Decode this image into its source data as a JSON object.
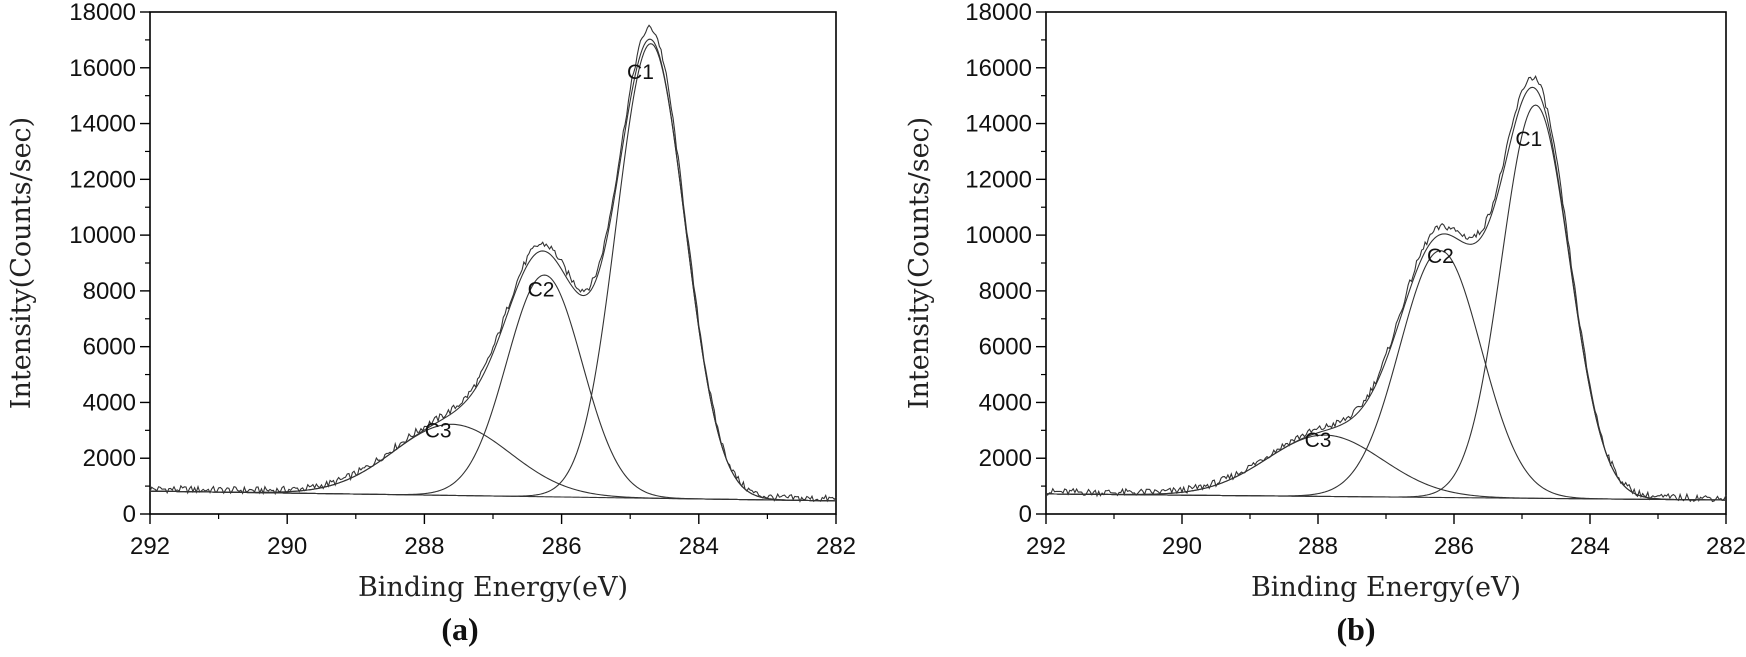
{
  "chart_data": [
    {
      "type": "line",
      "panel": "(a)",
      "panel_letter": "a",
      "xlabel": "Binding Energy(eV)",
      "ylabel": "Intensity(Counts/sec)",
      "xlim": [
        292,
        282
      ],
      "ylim": [
        0,
        18000
      ],
      "x_ticks": [
        292,
        290,
        288,
        286,
        284,
        282
      ],
      "y_ticks": [
        0,
        2000,
        4000,
        6000,
        8000,
        10000,
        12000,
        14000,
        16000,
        18000
      ],
      "background": {
        "start": 820,
        "end": 470
      },
      "peaks": [
        {
          "label": "C1",
          "center": 284.7,
          "height": 16300,
          "sigma": 0.5
        },
        {
          "label": "C2",
          "center": 286.25,
          "height": 7950,
          "sigma": 0.55
        },
        {
          "label": "C3",
          "center": 287.6,
          "height": 2550,
          "sigma": 0.85
        }
      ],
      "label_positions": [
        {
          "label": "C1",
          "x": 284.85,
          "y": 15600
        },
        {
          "label": "C2",
          "x": 286.3,
          "y": 7800
        },
        {
          "label": "C3",
          "x": 287.8,
          "y": 2750
        }
      ],
      "series": [
        {
          "name": "C1",
          "values": "gaussian"
        },
        {
          "name": "C2",
          "values": "gaussian"
        },
        {
          "name": "C3",
          "values": "gaussian"
        },
        {
          "name": "Background",
          "values": "linear"
        },
        {
          "name": "Envelope",
          "values": "sum"
        },
        {
          "name": "Raw data",
          "values": "measured"
        }
      ]
    },
    {
      "type": "line",
      "panel": "(b)",
      "panel_letter": "b",
      "xlabel": "Binding Energy(eV)",
      "ylabel": "Intensity(Counts/sec)",
      "xlim": [
        292,
        282
      ],
      "ylim": [
        0,
        18000
      ],
      "x_ticks": [
        292,
        290,
        288,
        286,
        284,
        282
      ],
      "y_ticks": [
        0,
        2000,
        4000,
        6000,
        8000,
        10000,
        12000,
        14000,
        16000,
        18000
      ],
      "background": {
        "start": 720,
        "end": 500
      },
      "peaks": [
        {
          "label": "C1",
          "center": 284.8,
          "height": 14100,
          "sigma": 0.5
        },
        {
          "label": "C2",
          "center": 286.2,
          "height": 8850,
          "sigma": 0.6
        },
        {
          "label": "C3",
          "center": 287.9,
          "height": 2200,
          "sigma": 0.85
        }
      ],
      "label_positions": [
        {
          "label": "C1",
          "x": 284.9,
          "y": 13200
        },
        {
          "label": "C2",
          "x": 286.2,
          "y": 9000
        },
        {
          "label": "C3",
          "x": 288.0,
          "y": 2400
        }
      ],
      "series": [
        {
          "name": "C1",
          "values": "gaussian"
        },
        {
          "name": "C2",
          "values": "gaussian"
        },
        {
          "name": "C3",
          "values": "gaussian"
        },
        {
          "name": "Background",
          "values": "linear"
        },
        {
          "name": "Envelope",
          "values": "sum"
        },
        {
          "name": "Raw data",
          "values": "measured"
        }
      ]
    }
  ]
}
